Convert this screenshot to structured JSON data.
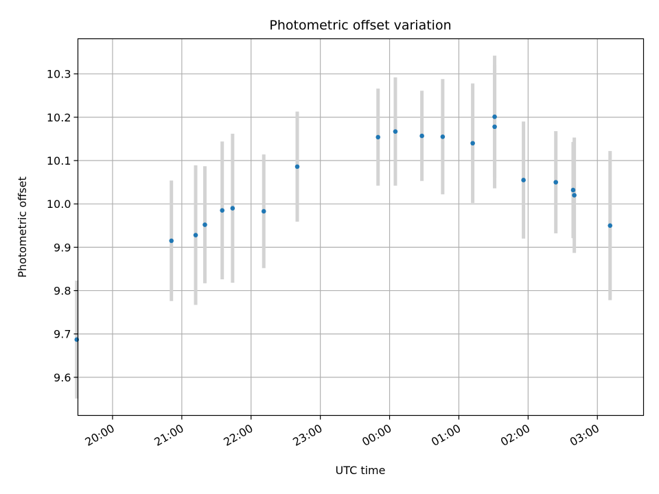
{
  "chart_data": {
    "type": "scatter",
    "title": "Photometric offset variation",
    "xlabel": "UTC time",
    "ylabel": "Photometric offset",
    "grid": true,
    "x_axis": {
      "kind": "time",
      "range": [
        "19:30",
        "03:40"
      ],
      "ticks": [
        {
          "x": "20:00",
          "label": "20:00"
        },
        {
          "x": "21:00",
          "label": "21:00"
        },
        {
          "x": "22:00",
          "label": "22:00"
        },
        {
          "x": "23:00",
          "label": "23:00"
        },
        {
          "x": "00:00",
          "label": "00:00"
        },
        {
          "x": "01:00",
          "label": "01:00"
        },
        {
          "x": "02:00",
          "label": "02:00"
        },
        {
          "x": "03:00",
          "label": "03:00"
        }
      ]
    },
    "y_axis": {
      "range": [
        9.512,
        10.381
      ],
      "ticks": [
        {
          "y": 9.6,
          "label": "9.6"
        },
        {
          "y": 9.7,
          "label": "9.7"
        },
        {
          "y": 9.8,
          "label": "9.8"
        },
        {
          "y": 9.9,
          "label": "9.9"
        },
        {
          "y": 10.0,
          "label": "10.0"
        },
        {
          "y": 10.1,
          "label": "10.1"
        },
        {
          "y": 10.2,
          "label": "10.2"
        },
        {
          "y": 10.3,
          "label": "10.3"
        }
      ]
    },
    "colors": {
      "point": "#1f77b4",
      "errorbar": "#d3d3d3",
      "grid": "#b0b0b0"
    },
    "points": [
      {
        "x": "19:29",
        "y": 9.687,
        "err": 0.136
      },
      {
        "x": "20:51",
        "y": 9.915,
        "err": 0.139
      },
      {
        "x": "21:12",
        "y": 9.928,
        "err": 0.161
      },
      {
        "x": "21:20",
        "y": 9.952,
        "err": 0.135
      },
      {
        "x": "21:35",
        "y": 9.985,
        "err": 0.159
      },
      {
        "x": "21:44",
        "y": 9.99,
        "err": 0.172
      },
      {
        "x": "22:11",
        "y": 9.983,
        "err": 0.131
      },
      {
        "x": "22:40",
        "y": 10.086,
        "err": 0.127
      },
      {
        "x": "23:50",
        "y": 10.154,
        "err": 0.112
      },
      {
        "x": "00:05",
        "y": 10.167,
        "err": 0.125
      },
      {
        "x": "00:28",
        "y": 10.157,
        "err": 0.104
      },
      {
        "x": "00:46",
        "y": 10.155,
        "err": 0.133
      },
      {
        "x": "01:12",
        "y": 10.14,
        "err": 0.138
      },
      {
        "x": "01:31",
        "y": 10.201,
        "err": 0.141
      },
      {
        "x": "01:31",
        "y": 10.178,
        "err": 0.142
      },
      {
        "x": "01:56",
        "y": 10.055,
        "err": 0.135
      },
      {
        "x": "02:24",
        "y": 10.05,
        "err": 0.118
      },
      {
        "x": "02:39",
        "y": 10.032,
        "err": 0.111
      },
      {
        "x": "02:40",
        "y": 10.02,
        "err": 0.133
      },
      {
        "x": "03:11",
        "y": 9.95,
        "err": 0.172
      }
    ]
  }
}
